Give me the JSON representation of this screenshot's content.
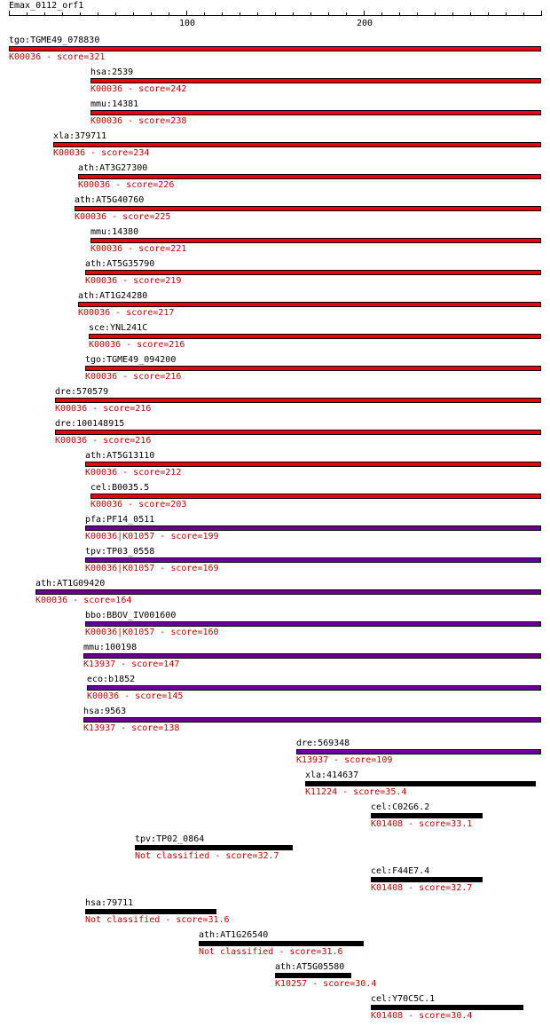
{
  "title": "Emax_0112_orf1",
  "axis": {
    "max": 300,
    "tick_labels": [
      "100",
      "200"
    ]
  },
  "colors": {
    "K00036": "#ee0000",
    "K00036|K01057": "#660099",
    "K13937": "#660099",
    "other": "#000000",
    "sub_text": "#cc0000"
  },
  "hits": [
    {
      "gene": "tgo:TGME49_078830",
      "ko": "K00036",
      "score": "321",
      "start": 1,
      "end": 300,
      "color": "#ee0000"
    },
    {
      "gene": "hsa:2539",
      "ko": "K00036",
      "score": "242",
      "start": 47,
      "end": 300,
      "color": "#ee0000"
    },
    {
      "gene": "mmu:14381",
      "ko": "K00036",
      "score": "238",
      "start": 47,
      "end": 300,
      "color": "#ee0000"
    },
    {
      "gene": "xla:379711",
      "ko": "K00036",
      "score": "234",
      "start": 26,
      "end": 300,
      "color": "#ee0000"
    },
    {
      "gene": "ath:AT3G27300",
      "ko": "K00036",
      "score": "226",
      "start": 40,
      "end": 300,
      "color": "#ee0000"
    },
    {
      "gene": "ath:AT5G40760",
      "ko": "K00036",
      "score": "225",
      "start": 38,
      "end": 300,
      "color": "#ee0000"
    },
    {
      "gene": "mmu:14380",
      "ko": "K00036",
      "score": "221",
      "start": 47,
      "end": 300,
      "color": "#ee0000"
    },
    {
      "gene": "ath:AT5G35790",
      "ko": "K00036",
      "score": "219",
      "start": 44,
      "end": 300,
      "color": "#ee0000"
    },
    {
      "gene": "ath:AT1G24280",
      "ko": "K00036",
      "score": "217",
      "start": 40,
      "end": 300,
      "color": "#ee0000"
    },
    {
      "gene": "sce:YNL241C",
      "ko": "K00036",
      "score": "216",
      "start": 46,
      "end": 300,
      "color": "#ee0000"
    },
    {
      "gene": "tgo:TGME49_094200",
      "ko": "K00036",
      "score": "216",
      "start": 44,
      "end": 300,
      "color": "#ee0000"
    },
    {
      "gene": "dre:570579",
      "ko": "K00036",
      "score": "216",
      "start": 27,
      "end": 300,
      "color": "#ee0000"
    },
    {
      "gene": "dre:100148915",
      "ko": "K00036",
      "score": "216",
      "start": 27,
      "end": 300,
      "color": "#ee0000"
    },
    {
      "gene": "ath:AT5G13110",
      "ko": "K00036",
      "score": "212",
      "start": 44,
      "end": 300,
      "color": "#ee0000"
    },
    {
      "gene": "cel:B0035.5",
      "ko": "K00036",
      "score": "203",
      "start": 47,
      "end": 300,
      "color": "#ee0000"
    },
    {
      "gene": "pfa:PF14_0511",
      "ko": "K00036|K01057",
      "score": "199",
      "start": 44,
      "end": 300,
      "color": "#660099"
    },
    {
      "gene": "tpv:TP03_0558",
      "ko": "K00036|K01057",
      "score": "169",
      "start": 44,
      "end": 300,
      "color": "#660099"
    },
    {
      "gene": "ath:AT1G09420",
      "ko": "K00036",
      "score": "164",
      "start": 16,
      "end": 300,
      "color": "#660099"
    },
    {
      "gene": "bbo:BBOV_IV001600",
      "ko": "K00036|K01057",
      "score": "160",
      "start": 44,
      "end": 300,
      "color": "#660099"
    },
    {
      "gene": "mmu:100198",
      "ko": "K13937",
      "score": "147",
      "start": 43,
      "end": 300,
      "color": "#660099"
    },
    {
      "gene": "eco:b1852",
      "ko": "K00036",
      "score": "145",
      "start": 45,
      "end": 300,
      "color": "#660099"
    },
    {
      "gene": "hsa:9563",
      "ko": "K13937",
      "score": "138",
      "start": 43,
      "end": 300,
      "color": "#660099"
    },
    {
      "gene": "dre:569348",
      "ko": "K13937",
      "score": "109",
      "start": 163,
      "end": 300,
      "color": "#660099"
    },
    {
      "gene": "xla:414637",
      "ko": "K11224",
      "score": "35.4",
      "start": 168,
      "end": 297,
      "color": "#000000"
    },
    {
      "gene": "cel:C02G6.2",
      "ko": "K01408",
      "score": "33.1",
      "start": 205,
      "end": 267,
      "color": "#000000"
    },
    {
      "gene": "tpv:TP02_0864",
      "ko": "Not classified",
      "score": "32.7",
      "start": 72,
      "end": 160,
      "color": "#000000"
    },
    {
      "gene": "cel:F44E7.4",
      "ko": "K01408",
      "score": "32.7",
      "start": 205,
      "end": 267,
      "color": "#000000"
    },
    {
      "gene": "hsa:79711",
      "ko": "Not classified",
      "score": "31.6",
      "start": 44,
      "end": 117,
      "color": "#000000"
    },
    {
      "gene": "ath:AT1G26540",
      "ko": "Not classified",
      "score": "31.6",
      "start": 108,
      "end": 200,
      "color": "#000000"
    },
    {
      "gene": "ath:AT5G05580",
      "ko": "K10257",
      "score": "30.4",
      "start": 151,
      "end": 193,
      "color": "#000000"
    },
    {
      "gene": "cel:Y70C5C.1",
      "ko": "K01408",
      "score": "30.4",
      "start": 205,
      "end": 290,
      "color": "#000000"
    }
  ]
}
